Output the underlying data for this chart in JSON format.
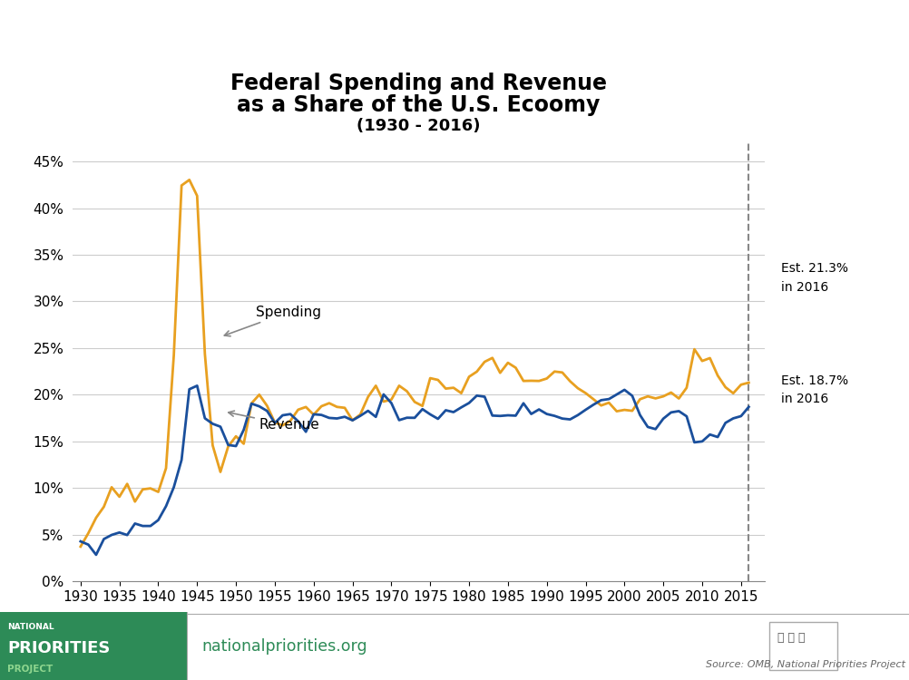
{
  "title_line1": "Federal Spending and Revenue",
  "title_line2": "as a Share of the U.S. Ecoomy",
  "title_line3": "(1930 - 2016)",
  "spending_color": "#E8A020",
  "revenue_color": "#1A4F9C",
  "background_color": "#FFFFFF",
  "npp_green": "#2D8B57",
  "ylim": [
    0,
    0.47
  ],
  "yticks": [
    0.0,
    0.05,
    0.1,
    0.15,
    0.2,
    0.25,
    0.3,
    0.35,
    0.4,
    0.45
  ],
  "ytick_labels": [
    "0%",
    "5%",
    "10%",
    "15%",
    "20%",
    "25%",
    "30%",
    "35%",
    "40%",
    "45%"
  ],
  "xlim": [
    1929,
    2018
  ],
  "xticks": [
    1930,
    1935,
    1940,
    1945,
    1950,
    1955,
    1960,
    1965,
    1970,
    1975,
    1980,
    1985,
    1990,
    1995,
    2000,
    2005,
    2010,
    2015
  ],
  "years": [
    1930,
    1931,
    1932,
    1933,
    1934,
    1935,
    1936,
    1937,
    1938,
    1939,
    1940,
    1941,
    1942,
    1943,
    1944,
    1945,
    1946,
    1947,
    1948,
    1949,
    1950,
    1951,
    1952,
    1953,
    1954,
    1955,
    1956,
    1957,
    1958,
    1959,
    1960,
    1961,
    1962,
    1963,
    1964,
    1965,
    1966,
    1967,
    1968,
    1969,
    1970,
    1971,
    1972,
    1973,
    1974,
    1975,
    1976,
    1977,
    1978,
    1979,
    1980,
    1981,
    1982,
    1983,
    1984,
    1985,
    1986,
    1987,
    1988,
    1989,
    1990,
    1991,
    1992,
    1993,
    1994,
    1995,
    1996,
    1997,
    1998,
    1999,
    2000,
    2001,
    2002,
    2003,
    2004,
    2005,
    2006,
    2007,
    2008,
    2009,
    2010,
    2011,
    2012,
    2013,
    2014,
    2015,
    2016
  ],
  "spending": [
    0.0373,
    0.0517,
    0.0682,
    0.08,
    0.1009,
    0.0907,
    0.1045,
    0.0855,
    0.0986,
    0.0997,
    0.0959,
    0.1213,
    0.2421,
    0.4243,
    0.4303,
    0.4132,
    0.2438,
    0.1458,
    0.1173,
    0.1446,
    0.1555,
    0.1475,
    0.1908,
    0.2001,
    0.1882,
    0.1703,
    0.1672,
    0.1721,
    0.184,
    0.1869,
    0.1786,
    0.1877,
    0.191,
    0.187,
    0.186,
    0.1726,
    0.1788,
    0.1977,
    0.2097,
    0.1927,
    0.1948,
    0.2097,
    0.2038,
    0.1923,
    0.188,
    0.2178,
    0.2159,
    0.2066,
    0.2075,
    0.2017,
    0.2193,
    0.2248,
    0.2353,
    0.2395,
    0.2235,
    0.2343,
    0.229,
    0.2148,
    0.215,
    0.2148,
    0.2174,
    0.2249,
    0.2239,
    0.2145,
    0.207,
    0.2018,
    0.1953,
    0.1885,
    0.1915,
    0.1823,
    0.1838,
    0.1828,
    0.1952,
    0.1983,
    0.1961,
    0.1983,
    0.2024,
    0.196,
    0.2075,
    0.2488,
    0.2362,
    0.2393,
    0.2206,
    0.2081,
    0.2016,
    0.2108,
    0.213
  ],
  "revenue": [
    0.0429,
    0.0394,
    0.0285,
    0.0454,
    0.0498,
    0.0524,
    0.0497,
    0.062,
    0.0594,
    0.0594,
    0.0657,
    0.0806,
    0.1009,
    0.1302,
    0.2059,
    0.2097,
    0.1748,
    0.1689,
    0.1658,
    0.1462,
    0.145,
    0.1625,
    0.1905,
    0.1876,
    0.1827,
    0.1697,
    0.178,
    0.1793,
    0.1716,
    0.1603,
    0.1791,
    0.1784,
    0.1752,
    0.1746,
    0.1764,
    0.1726,
    0.1774,
    0.1828,
    0.1763,
    0.2004,
    0.1911,
    0.1728,
    0.1754,
    0.1753,
    0.1846,
    0.179,
    0.1742,
    0.1834,
    0.1814,
    0.1865,
    0.1912,
    0.1991,
    0.1979,
    0.1777,
    0.1773,
    0.178,
    0.1776,
    0.1909,
    0.1794,
    0.1843,
    0.1794,
    0.1774,
    0.1745,
    0.1736,
    0.1782,
    0.1839,
    0.1893,
    0.1942,
    0.1954,
    0.2003,
    0.2053,
    0.1989,
    0.1783,
    0.1655,
    0.1632,
    0.1744,
    0.1811,
    0.1825,
    0.1769,
    0.149,
    0.15,
    0.1574,
    0.1547,
    0.1699,
    0.1747,
    0.1771,
    0.187
  ],
  "source_text": "Source: OMB, National Priorities Project"
}
